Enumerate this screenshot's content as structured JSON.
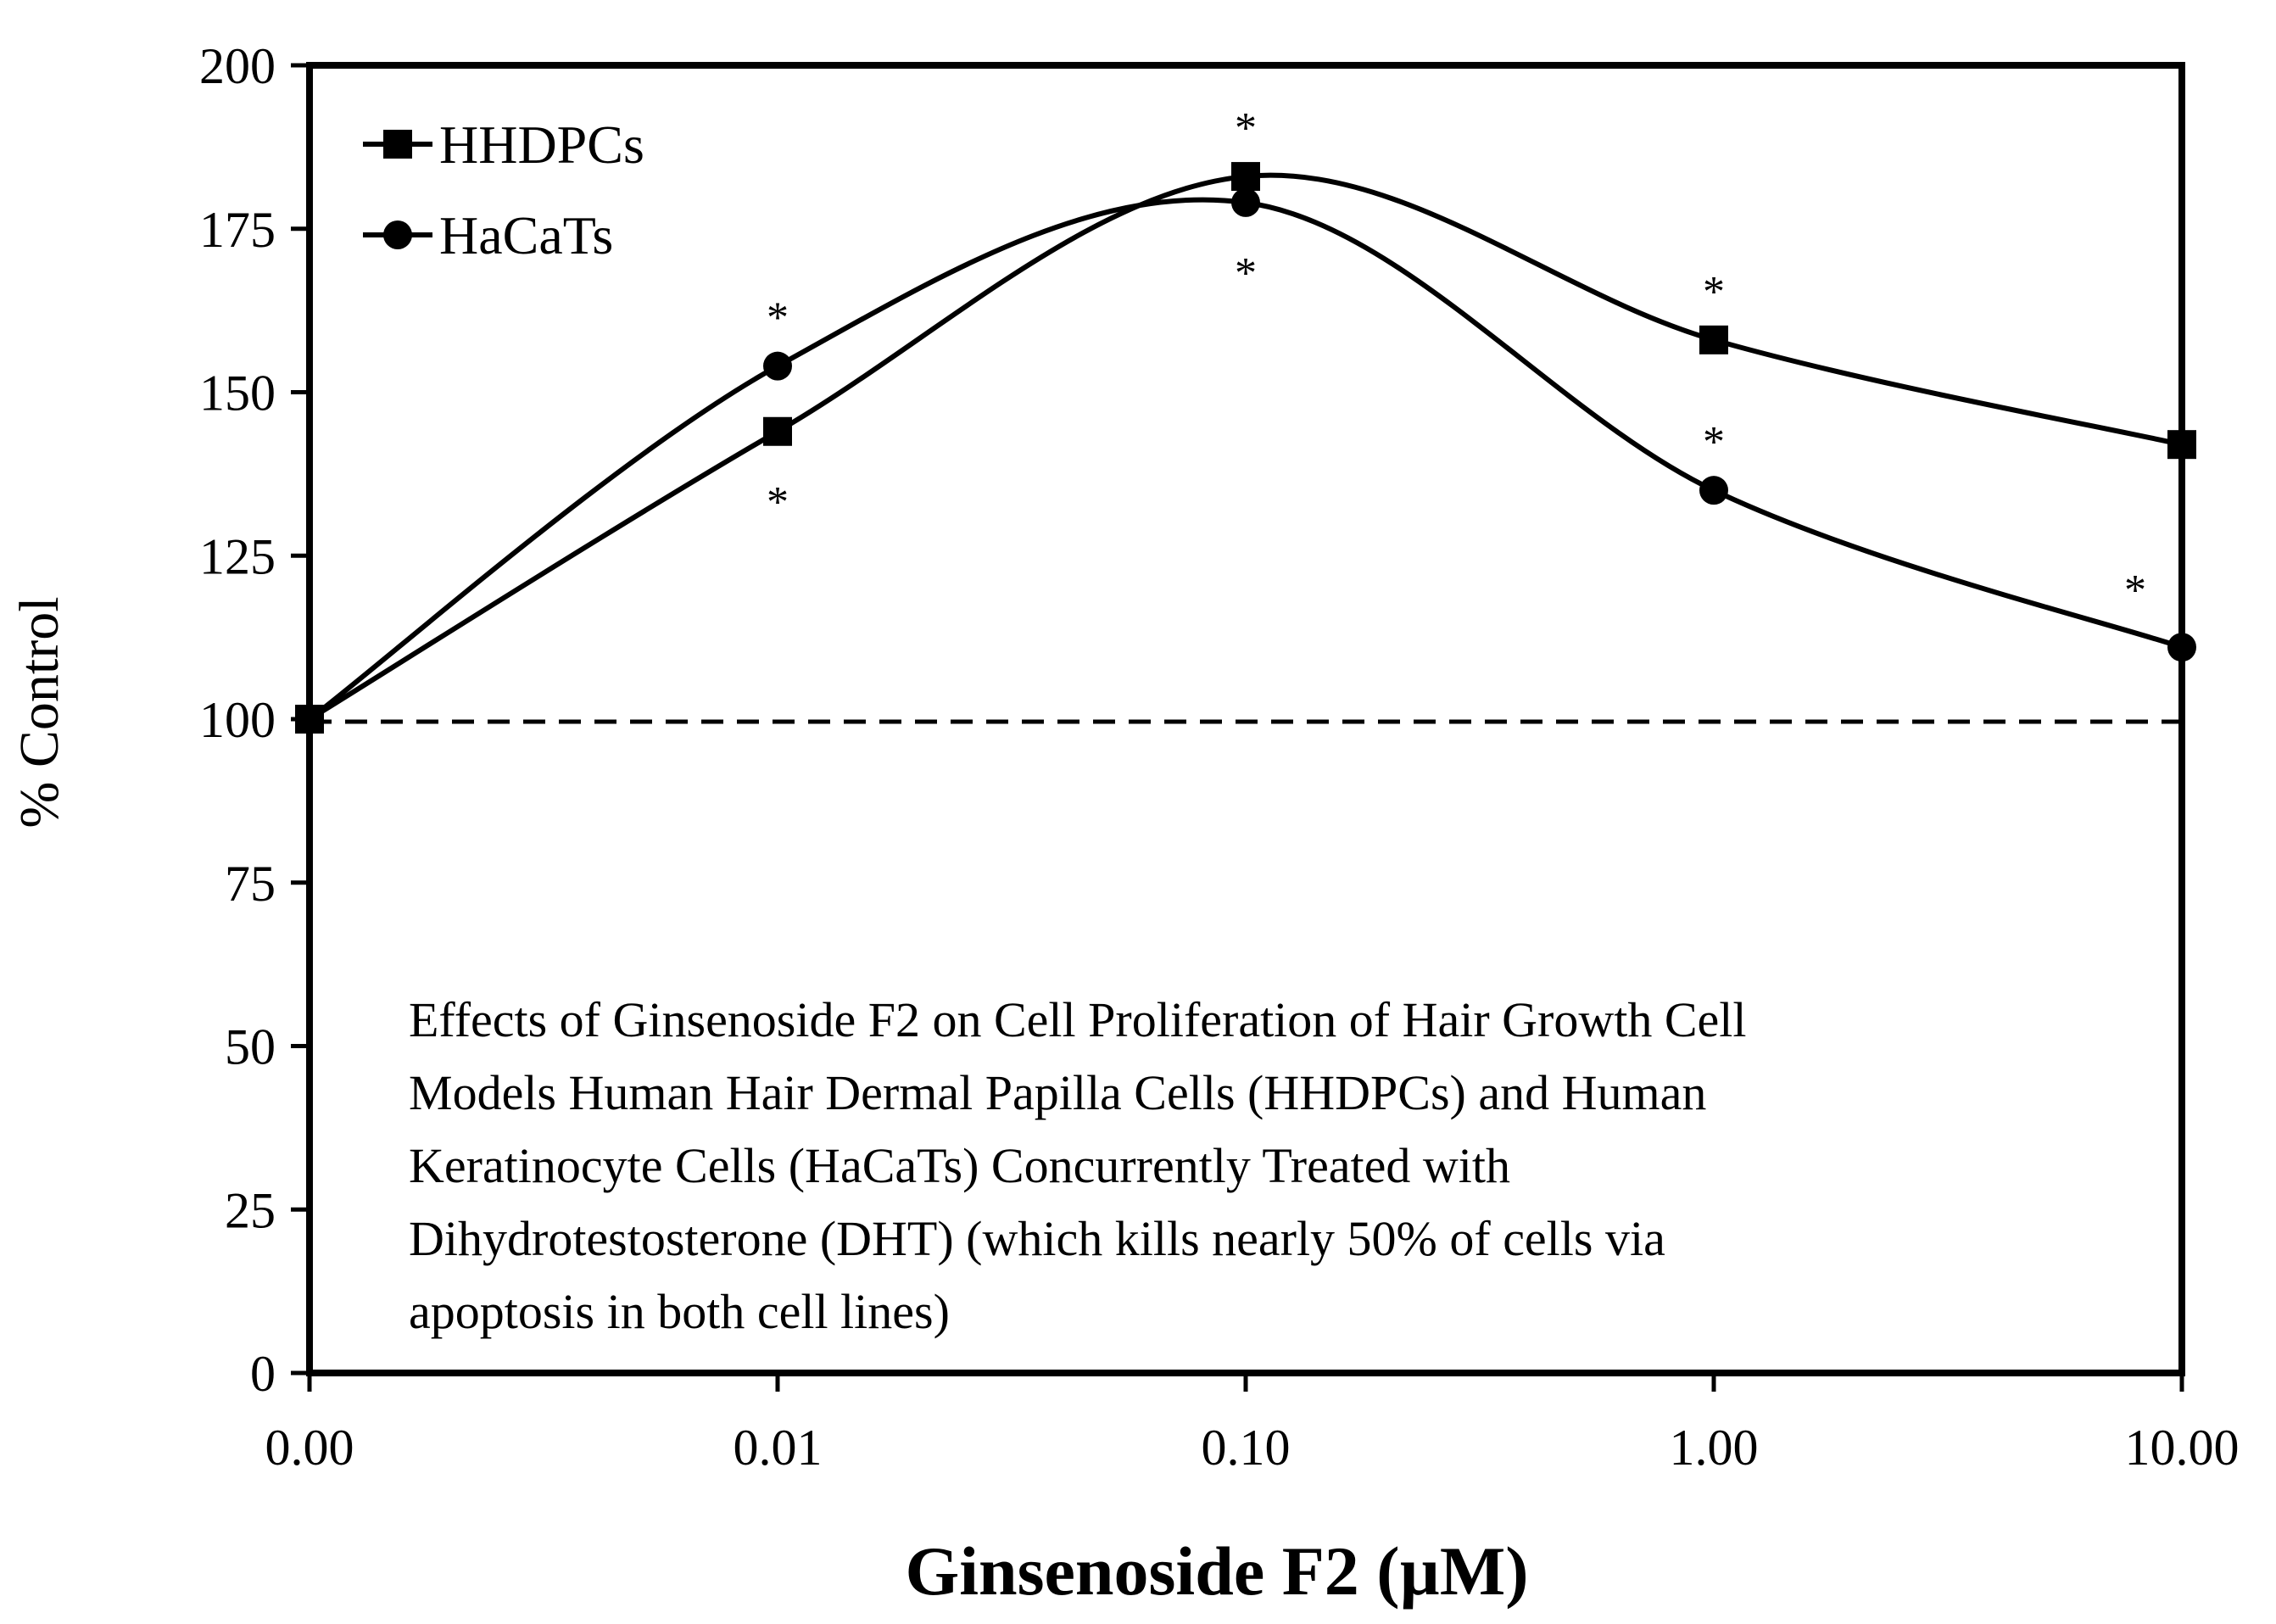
{
  "chart_data": {
    "type": "line",
    "title": "",
    "xlabel": "Ginsenoside F2 (µM)",
    "ylabel": "% Control",
    "categories": [
      "0.00",
      "0.01",
      "0.10",
      "1.00",
      "10.00"
    ],
    "x_tick_labels": [
      "0.00",
      "0.01",
      "0.10",
      "1.00",
      "10.00"
    ],
    "y_tick_labels": [
      "0",
      "25",
      "50",
      "75",
      "100",
      "125",
      "150",
      "175",
      "200"
    ],
    "ylim": [
      0,
      200
    ],
    "y_ticks": [
      0,
      25,
      50,
      75,
      100,
      125,
      150,
      175,
      200
    ],
    "reference_line": {
      "value": 100,
      "style": "dashed"
    },
    "legend": {
      "position": "top-left"
    },
    "series": [
      {
        "name": "HHDPCs",
        "marker": "square",
        "values": [
          100,
          144,
          183,
          158,
          142
        ],
        "significance": [
          "",
          "*",
          "*",
          "*",
          ""
        ]
      },
      {
        "name": "HaCaTs",
        "marker": "circle",
        "values": [
          100,
          154,
          179,
          135,
          111
        ],
        "significance": [
          "",
          "*",
          "*",
          "*",
          "*"
        ]
      }
    ],
    "annotation": "Effects of Ginsenoside F2 on Cell Proliferation of Hair Growth Cell Models Human Hair Dermal Papilla Cells (HHDPCs) and Human Keratinocyte Cells (HaCaTs) Concurrently Treated with Dihydrotestosterone (DHT) (which kills nearly 50% of cells via apoptosis in both cell lines)",
    "annotation_lines": [
      "Effects of Ginsenoside F2 on Cell Proliferation of Hair Growth Cell",
      "Models Human Hair Dermal Papilla Cells (HHDPCs) and Human",
      "Keratinocyte Cells (HaCaTs) Concurrently Treated with",
      "Dihydrotestosterone (DHT) (which kills nearly 50% of cells via",
      "apoptosis in both cell lines)"
    ],
    "significance_symbol": "*"
  }
}
